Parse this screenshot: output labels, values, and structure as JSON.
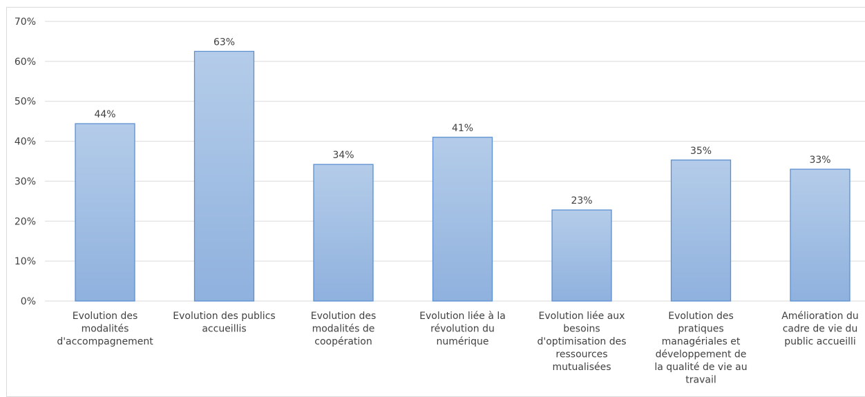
{
  "chart_data": {
    "type": "bar",
    "categories": [
      "Evolution des modalités d'accompagnement",
      "Evolution des publics accueillis",
      "Evolution des modalités de coopération",
      "Evolution liée à la révolution du numérique",
      "Evolution liée aux besoins d'optimisation des ressources mutualisées",
      "Evolution des pratiques managériales et développement de la qualité de vie au travail",
      "Amélioration du cadre de vie du public accueilli"
    ],
    "category_lines": [
      [
        "Evolution des",
        "modalités",
        "d'accompagnement"
      ],
      [
        "Evolution des publics",
        "accueillis"
      ],
      [
        "Evolution des",
        "modalités de",
        "coopération"
      ],
      [
        "Evolution liée à la",
        "révolution du",
        "numérique"
      ],
      [
        "Evolution liée aux",
        "besoins",
        "d'optimisation des",
        "ressources",
        "mutualisées"
      ],
      [
        "Evolution des",
        "pratiques",
        "managériales et",
        "développement de",
        "la qualité de vie au",
        "travail"
      ],
      [
        "Amélioration du",
        "cadre de vie du",
        "public accueilli"
      ]
    ],
    "values": [
      44.4,
      62.5,
      34.2,
      41.0,
      22.8,
      35.3,
      33.0
    ],
    "data_labels": [
      "44%",
      "63%",
      "34%",
      "41%",
      "23%",
      "35%",
      "33%"
    ],
    "ylim": [
      0,
      70
    ],
    "yticks": [
      "0%",
      "10%",
      "20%",
      "30%",
      "40%",
      "50%",
      "60%",
      "70%"
    ],
    "ytick_values": [
      0,
      10,
      20,
      30,
      40,
      50,
      60,
      70
    ],
    "grid": true,
    "colors": {
      "bar_top": "#b4cce9",
      "bar_bottom": "#8fb1de",
      "bar_edge": "#5b8fd0",
      "grid": "#d9d9d9",
      "text": "#404040"
    }
  }
}
